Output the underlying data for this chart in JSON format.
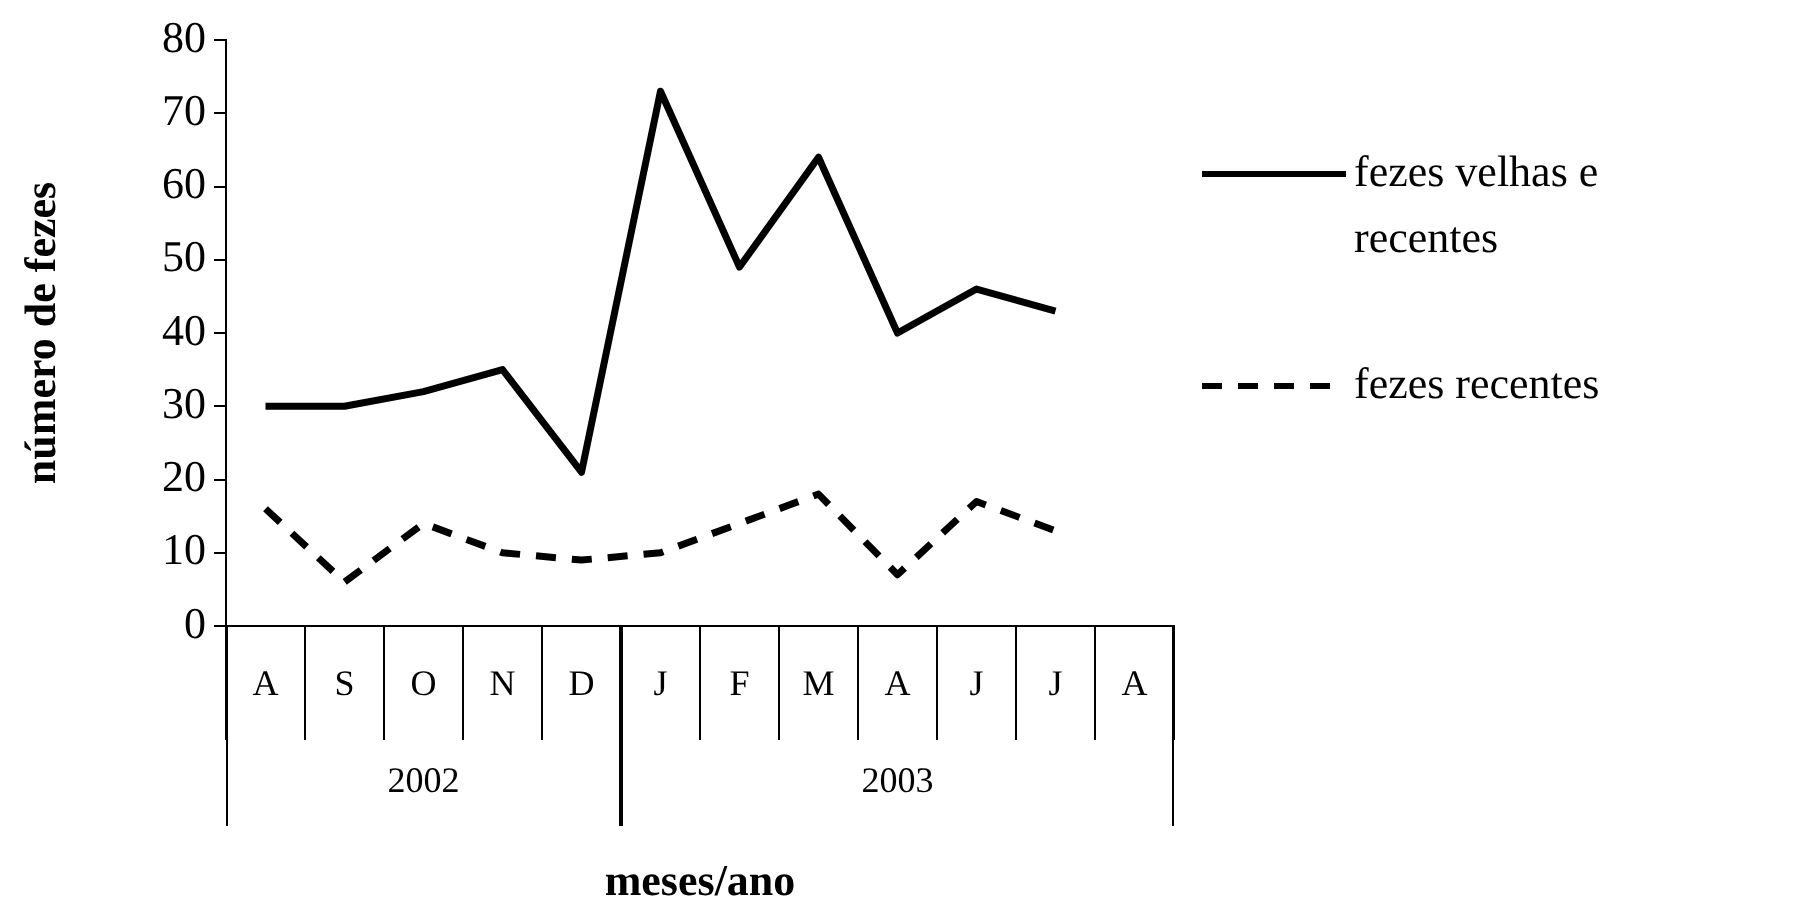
{
  "chart_data": {
    "type": "line",
    "xlabel": "meses/ano",
    "ylabel": "número de fezes",
    "categories": [
      "A",
      "S",
      "O",
      "N",
      "D",
      "J",
      "F",
      "M",
      "A",
      "J",
      "J",
      "A"
    ],
    "series": [
      {
        "name": "fezes velhas e recentes",
        "color": "#000000",
        "line_style": "solid",
        "values": [
          30,
          30,
          32,
          35,
          21,
          73,
          49,
          64,
          40,
          46,
          43,
          null
        ]
      },
      {
        "name": "fezes recentes",
        "color": "#000000",
        "line_style": "dashed",
        "values": [
          16,
          6,
          14,
          10,
          9,
          10,
          14,
          18,
          7,
          17,
          13,
          null
        ]
      }
    ],
    "annotations": [
      "2002",
      "2003"
    ],
    "ylim": [
      0,
      80
    ],
    "yticks": [
      0,
      10,
      20,
      30,
      40,
      50,
      60,
      70,
      80
    ],
    "grid": false,
    "legend": "right",
    "marker": "none"
  }
}
